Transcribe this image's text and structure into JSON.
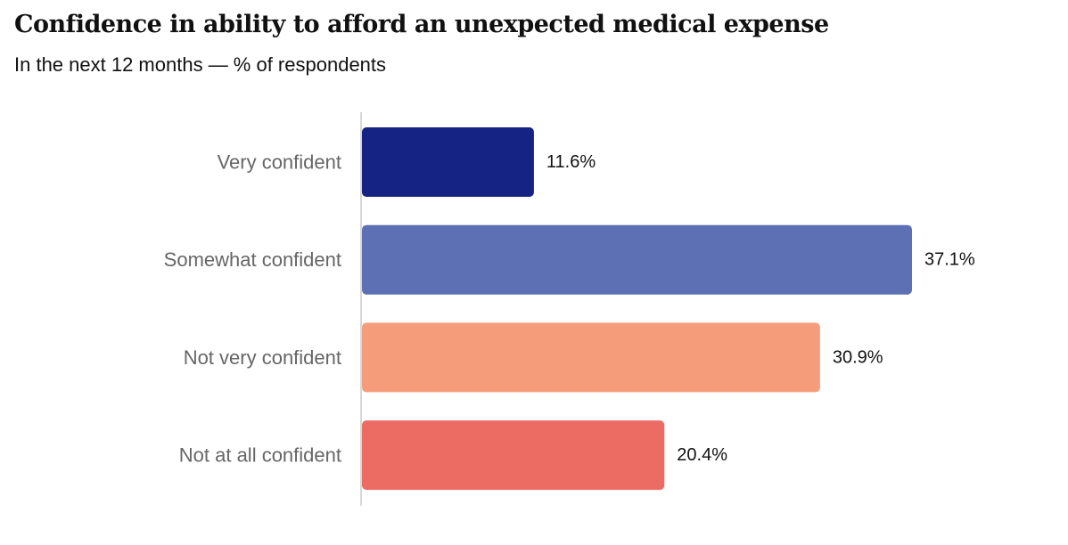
{
  "title": "Confidence in ability to afford an unexpected medical expense",
  "subtitle": "In the next 12 months — % of respondents",
  "chart_data": {
    "type": "bar",
    "orientation": "horizontal",
    "title": "Confidence in ability to afford an unexpected medical expense",
    "subtitle": "In the next 12 months — % of respondents",
    "categories": [
      "Very confident",
      "Somewhat confident",
      "Not very confident",
      "Not at all confident"
    ],
    "values": [
      11.6,
      37.1,
      30.9,
      20.4
    ],
    "value_labels": [
      "11.6%",
      "37.1%",
      "30.9%",
      "20.4%"
    ],
    "colors": [
      "#152384",
      "#5c70b3",
      "#f59d7b",
      "#ec6c64"
    ],
    "xlim": [
      0,
      37.1
    ],
    "grid": false,
    "legend": "none"
  }
}
